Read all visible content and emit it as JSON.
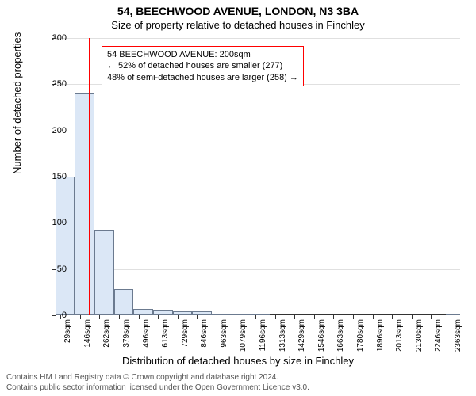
{
  "title": "54, BEECHWOOD AVENUE, LONDON, N3 3BA",
  "subtitle": "Size of property relative to detached houses in Finchley",
  "ylabel": "Number of detached properties",
  "xlabel": "Distribution of detached houses by size in Finchley",
  "chart": {
    "type": "histogram",
    "ylim": [
      0,
      300
    ],
    "ytick_step": 50,
    "yticks": [
      0,
      50,
      100,
      150,
      200,
      250,
      300
    ],
    "xlim": [
      0,
      2420
    ],
    "xticks": [
      29,
      146,
      262,
      379,
      496,
      613,
      729,
      846,
      963,
      1079,
      1196,
      1313,
      1429,
      1546,
      1663,
      1780,
      1896,
      2013,
      2130,
      2246,
      2363
    ],
    "xtick_suffix": "sqm",
    "bars": [
      {
        "x0": 0,
        "x1": 116,
        "y": 150
      },
      {
        "x0": 116,
        "x1": 233,
        "y": 240
      },
      {
        "x0": 233,
        "x1": 350,
        "y": 92
      },
      {
        "x0": 350,
        "x1": 466,
        "y": 28
      },
      {
        "x0": 466,
        "x1": 583,
        "y": 7
      },
      {
        "x0": 583,
        "x1": 700,
        "y": 5
      },
      {
        "x0": 700,
        "x1": 816,
        "y": 4
      },
      {
        "x0": 816,
        "x1": 933,
        "y": 4
      },
      {
        "x0": 933,
        "x1": 1050,
        "y": 2
      },
      {
        "x0": 1050,
        "x1": 1166,
        "y": 2
      },
      {
        "x0": 1166,
        "x1": 1283,
        "y": 1
      },
      {
        "x0": 1283,
        "x1": 1400,
        "y": 0
      },
      {
        "x0": 1400,
        "x1": 1516,
        "y": 0
      },
      {
        "x0": 1516,
        "x1": 1633,
        "y": 0
      },
      {
        "x0": 1633,
        "x1": 1750,
        "y": 0
      },
      {
        "x0": 1750,
        "x1": 1866,
        "y": 0
      },
      {
        "x0": 1866,
        "x1": 1983,
        "y": 0
      },
      {
        "x0": 1983,
        "x1": 2100,
        "y": 0
      },
      {
        "x0": 2100,
        "x1": 2216,
        "y": 0
      },
      {
        "x0": 2216,
        "x1": 2333,
        "y": 0
      },
      {
        "x0": 2333,
        "x1": 2420,
        "y": 1
      }
    ],
    "bar_fill": "#dbe7f6",
    "bar_stroke": "#6b7a8f",
    "grid_color": "#e0e0e0",
    "background_color": "#ffffff",
    "axis_color": "#333333",
    "marker": {
      "x": 200,
      "color": "#ff0000",
      "width": 2
    }
  },
  "annotation": {
    "border_color": "#ff0000",
    "lines": [
      "54 BEECHWOOD AVENUE: 200sqm",
      "← 52% of detached houses are smaller (277)",
      "48% of semi-detached houses are larger (258) →"
    ]
  },
  "footer_line1": "Contains HM Land Registry data © Crown copyright and database right 2024.",
  "footer_line2": "Contains public sector information licensed under the Open Government Licence v3.0."
}
